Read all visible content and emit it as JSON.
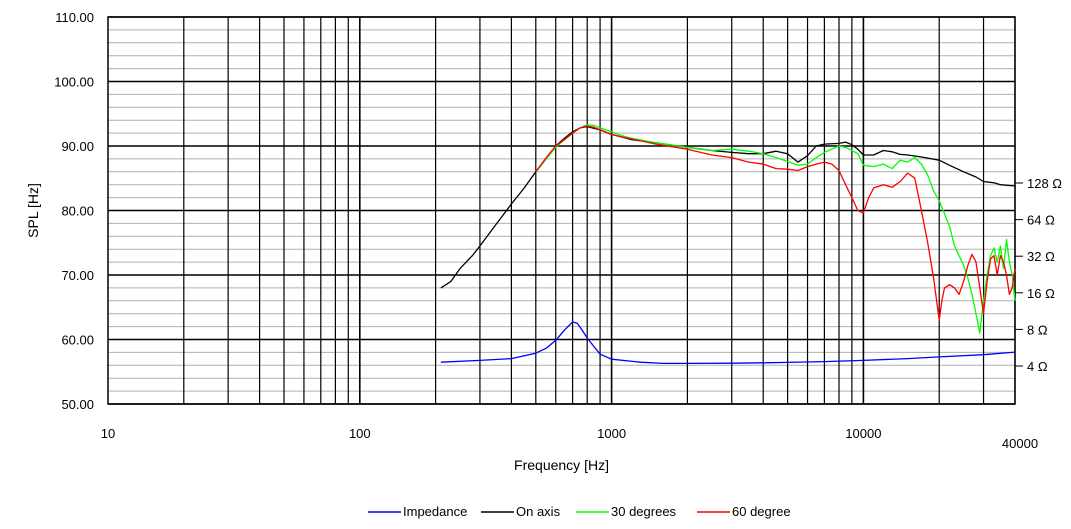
{
  "chart_data": {
    "type": "line",
    "xlabel": "Frequency [Hz]",
    "ylabel": "SPL [Hz]",
    "x_scale": "log",
    "xlim": [
      10,
      40000
    ],
    "ylim": [
      50,
      110
    ],
    "grid": true,
    "x_ticks": [
      "10",
      "100",
      "1000",
      "10000",
      "40000"
    ],
    "y_ticks": [
      "50.00",
      "60.00",
      "70.00",
      "80.00",
      "90.00",
      "100.00",
      "110.00"
    ],
    "right_axis_ticks": [
      "4 Ω",
      "8 Ω",
      "16 Ω",
      "32 Ω",
      "64 Ω",
      "128 Ω"
    ],
    "right_axis_values": [
      4,
      8,
      16,
      32,
      64,
      128
    ],
    "legend_position": "bottom-center",
    "series": [
      {
        "name": "Impedance",
        "color": "#0000ff",
        "axis": "right",
        "points": [
          [
            210,
            4.3
          ],
          [
            300,
            4.45
          ],
          [
            400,
            4.6
          ],
          [
            500,
            5.1
          ],
          [
            550,
            5.6
          ],
          [
            600,
            6.5
          ],
          [
            650,
            7.9
          ],
          [
            700,
            9.2
          ],
          [
            730,
            9.0
          ],
          [
            760,
            8.0
          ],
          [
            800,
            6.8
          ],
          [
            850,
            5.8
          ],
          [
            900,
            5.0
          ],
          [
            1000,
            4.55
          ],
          [
            1300,
            4.3
          ],
          [
            1600,
            4.2
          ],
          [
            2000,
            4.2
          ],
          [
            3000,
            4.22
          ],
          [
            4000,
            4.25
          ],
          [
            5000,
            4.28
          ],
          [
            7000,
            4.35
          ],
          [
            10000,
            4.45
          ],
          [
            15000,
            4.6
          ],
          [
            20000,
            4.75
          ],
          [
            30000,
            4.95
          ],
          [
            40000,
            5.2
          ]
        ]
      },
      {
        "name": "On axis",
        "color": "#000000",
        "axis": "left",
        "points": [
          [
            210,
            68
          ],
          [
            230,
            69
          ],
          [
            250,
            71
          ],
          [
            280,
            73
          ],
          [
            300,
            74.5
          ],
          [
            350,
            78
          ],
          [
            400,
            81
          ],
          [
            450,
            83.5
          ],
          [
            500,
            86
          ],
          [
            550,
            88
          ],
          [
            600,
            90
          ],
          [
            650,
            91.2
          ],
          [
            700,
            92.2
          ],
          [
            750,
            92.8
          ],
          [
            800,
            93
          ],
          [
            900,
            92.5
          ],
          [
            1000,
            91.8
          ],
          [
            1200,
            91
          ],
          [
            1500,
            90.5
          ],
          [
            2000,
            89.8
          ],
          [
            2500,
            89.3
          ],
          [
            3000,
            89
          ],
          [
            3500,
            88.8
          ],
          [
            4000,
            88.8
          ],
          [
            4500,
            89.2
          ],
          [
            5000,
            88.8
          ],
          [
            5500,
            87.5
          ],
          [
            6000,
            88.5
          ],
          [
            6500,
            90
          ],
          [
            7000,
            90.3
          ],
          [
            8000,
            90.4
          ],
          [
            8500,
            90.6
          ],
          [
            9000,
            90.2
          ],
          [
            9500,
            89.5
          ],
          [
            10000,
            88.6
          ],
          [
            11000,
            88.6
          ],
          [
            12000,
            89.3
          ],
          [
            13000,
            89.1
          ],
          [
            14000,
            88.7
          ],
          [
            15000,
            88.6
          ],
          [
            17000,
            88.3
          ],
          [
            20000,
            87.8
          ],
          [
            22000,
            87
          ],
          [
            25000,
            86
          ],
          [
            28000,
            85.2
          ],
          [
            30000,
            84.5
          ],
          [
            33000,
            84.3
          ],
          [
            35000,
            84
          ],
          [
            40000,
            83.8
          ]
        ]
      },
      {
        "name": "30 degrees",
        "color": "#00ff00",
        "axis": "left",
        "points": [
          [
            500,
            86
          ],
          [
            550,
            88
          ],
          [
            600,
            89.8
          ],
          [
            650,
            91
          ],
          [
            700,
            92
          ],
          [
            750,
            92.8
          ],
          [
            800,
            93.3
          ],
          [
            850,
            93.2
          ],
          [
            900,
            92.8
          ],
          [
            1000,
            92.2
          ],
          [
            1100,
            91.6
          ],
          [
            1200,
            91.2
          ],
          [
            1500,
            90.5
          ],
          [
            2000,
            89.8
          ],
          [
            2500,
            89.3
          ],
          [
            3000,
            89.5
          ],
          [
            3500,
            89.2
          ],
          [
            4000,
            88.8
          ],
          [
            4500,
            88.2
          ],
          [
            5000,
            87.6
          ],
          [
            5500,
            87
          ],
          [
            6000,
            87.2
          ],
          [
            6500,
            88.2
          ],
          [
            7000,
            89
          ],
          [
            8000,
            90
          ],
          [
            8500,
            89.8
          ],
          [
            9000,
            89.3
          ],
          [
            9500,
            88.8
          ],
          [
            10000,
            87
          ],
          [
            11000,
            86.8
          ],
          [
            12000,
            87.2
          ],
          [
            13000,
            86.5
          ],
          [
            14000,
            87.8
          ],
          [
            15000,
            87.5
          ],
          [
            16000,
            88.2
          ],
          [
            17000,
            87.2
          ],
          [
            18000,
            85.5
          ],
          [
            19000,
            83
          ],
          [
            20000,
            81.5
          ],
          [
            21000,
            79.5
          ],
          [
            22000,
            77.5
          ],
          [
            23000,
            74.5
          ],
          [
            24000,
            73
          ],
          [
            25000,
            71.5
          ],
          [
            26000,
            69.5
          ],
          [
            27000,
            67
          ],
          [
            28000,
            64
          ],
          [
            29000,
            61
          ],
          [
            30000,
            66
          ],
          [
            31000,
            70
          ],
          [
            32000,
            73
          ],
          [
            33000,
            74.2
          ],
          [
            34000,
            72
          ],
          [
            35000,
            74.5
          ],
          [
            36000,
            71
          ],
          [
            37000,
            75.5
          ],
          [
            38000,
            72
          ],
          [
            39000,
            70
          ],
          [
            40000,
            66
          ]
        ]
      },
      {
        "name": "60 degree",
        "color": "#ff0000",
        "axis": "left",
        "points": [
          [
            500,
            86
          ],
          [
            550,
            88.2
          ],
          [
            600,
            90
          ],
          [
            650,
            91
          ],
          [
            700,
            92
          ],
          [
            750,
            92.8
          ],
          [
            800,
            93.1
          ],
          [
            850,
            92.9
          ],
          [
            900,
            92.5
          ],
          [
            1000,
            91.8
          ],
          [
            1100,
            91.4
          ],
          [
            1200,
            91.1
          ],
          [
            1500,
            90.3
          ],
          [
            2000,
            89.5
          ],
          [
            2500,
            88.6
          ],
          [
            3000,
            88.2
          ],
          [
            3500,
            87.5
          ],
          [
            4000,
            87.2
          ],
          [
            4500,
            86.5
          ],
          [
            5000,
            86.4
          ],
          [
            5500,
            86.2
          ],
          [
            6000,
            86.8
          ],
          [
            6500,
            87.2
          ],
          [
            7000,
            87.5
          ],
          [
            7500,
            87.2
          ],
          [
            8000,
            86.2
          ],
          [
            8500,
            84
          ],
          [
            9000,
            82
          ],
          [
            9500,
            80
          ],
          [
            10000,
            79.6
          ],
          [
            10500,
            82
          ],
          [
            11000,
            83.5
          ],
          [
            12000,
            84
          ],
          [
            13000,
            83.6
          ],
          [
            14000,
            84.5
          ],
          [
            15000,
            85.8
          ],
          [
            16000,
            85
          ],
          [
            17000,
            80
          ],
          [
            18000,
            75
          ],
          [
            19000,
            69.5
          ],
          [
            20000,
            63
          ],
          [
            20500,
            66
          ],
          [
            21000,
            68
          ],
          [
            22000,
            68.5
          ],
          [
            23000,
            68
          ],
          [
            24000,
            67
          ],
          [
            25000,
            69
          ],
          [
            26000,
            71.5
          ],
          [
            27000,
            73.2
          ],
          [
            28000,
            72
          ],
          [
            29000,
            68
          ],
          [
            30000,
            64
          ],
          [
            31000,
            69
          ],
          [
            32000,
            72.5
          ],
          [
            33000,
            73
          ],
          [
            34000,
            70
          ],
          [
            35000,
            73
          ],
          [
            36000,
            72
          ],
          [
            37000,
            70
          ],
          [
            38000,
            67
          ],
          [
            39000,
            68
          ],
          [
            40000,
            71
          ]
        ]
      }
    ]
  }
}
